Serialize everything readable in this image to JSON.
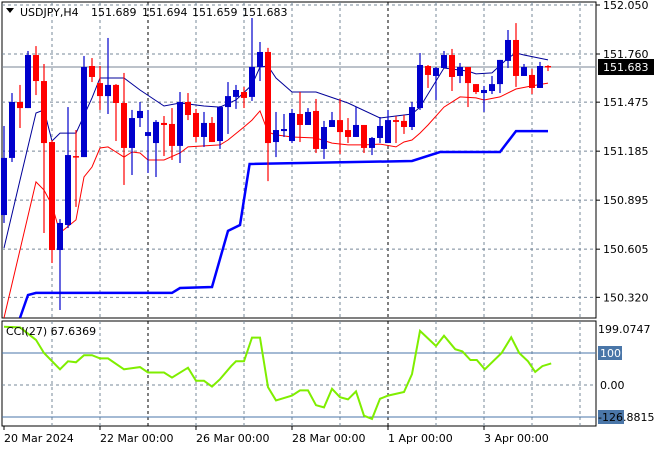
{
  "header": {
    "symbol_arrow_icon": "triangle-down-icon",
    "symbol": "USDJPY,H4",
    "open": "151.689",
    "high": "151.694",
    "low": "151.659",
    "close": "151.683"
  },
  "colors": {
    "bull": "#0000CC",
    "bear": "#FF0000",
    "upper_line": "#000099",
    "lower_line": "#FF0000",
    "stop_line": "#0000FF",
    "cci": "#7FEE00",
    "level": "#4A76A8",
    "grid": "#778899"
  },
  "chart_data": [
    {
      "type": "candlestick",
      "title": "USDJPY,H4",
      "y_ticks": [
        "152.050",
        "151.760",
        "151.475",
        "151.185",
        "150.895",
        "150.605",
        "150.320"
      ],
      "ylim": [
        150.2,
        152.07
      ],
      "grid": true,
      "current_price": "151.683",
      "x_ticks": [
        {
          "bar": 1,
          "label": "20 Mar 2024"
        },
        {
          "bar": 13,
          "label": "22 Mar 00:00"
        },
        {
          "bar": 25,
          "label": "26 Mar 00:00"
        },
        {
          "bar": 37,
          "label": "28 Mar 00:00"
        },
        {
          "bar": 49,
          "label": "1 Apr 00:00"
        },
        {
          "bar": 61,
          "label": "3 Apr 00:00"
        }
      ],
      "ohlc": [
        [
          150.807,
          151.334,
          150.76,
          151.145
        ],
        [
          151.145,
          151.529,
          151.121,
          151.476
        ],
        [
          151.476,
          151.577,
          151.322,
          151.44
        ],
        [
          151.44,
          151.778,
          151.44,
          151.754
        ],
        [
          151.754,
          151.807,
          151.517,
          151.6
        ],
        [
          151.6,
          151.701,
          150.701,
          151.233
        ],
        [
          151.239,
          151.251,
          150.523,
          150.6
        ],
        [
          150.6,
          150.783,
          150.245,
          150.76
        ],
        [
          150.748,
          151.446,
          150.73,
          151.162
        ],
        [
          151.156,
          151.31,
          150.855,
          151.15
        ],
        [
          151.15,
          151.748,
          151.15,
          151.683
        ],
        [
          151.689,
          151.736,
          151.594,
          151.624
        ],
        [
          151.588,
          151.689,
          151.429,
          151.511
        ],
        [
          151.511,
          151.855,
          151.405,
          151.577
        ],
        [
          151.577,
          151.582,
          151.245,
          151.47
        ],
        [
          151.47,
          151.648,
          150.985,
          151.204
        ],
        [
          151.204,
          151.429,
          151.044,
          151.381
        ],
        [
          151.381,
          151.476,
          151.328,
          151.423
        ],
        [
          151.275,
          151.429,
          151.056,
          151.298
        ],
        [
          151.233,
          151.369,
          151.032,
          151.358
        ],
        [
          151.352,
          151.393,
          151.156,
          151.34
        ],
        [
          151.346,
          151.44,
          151.133,
          151.216
        ],
        [
          151.216,
          151.535,
          151.115,
          151.476
        ],
        [
          151.476,
          151.529,
          151.369,
          151.399
        ],
        [
          151.411,
          151.435,
          151.239,
          151.269
        ],
        [
          151.269,
          151.417,
          151.21,
          151.352
        ],
        [
          151.352,
          151.387,
          151.239,
          151.239
        ],
        [
          151.245,
          151.452,
          151.198,
          151.446
        ],
        [
          151.446,
          151.594,
          151.287,
          151.511
        ],
        [
          151.506,
          151.577,
          151.435,
          151.547
        ],
        [
          151.535,
          151.565,
          151.44,
          151.5
        ],
        [
          151.506,
          151.973,
          151.482,
          151.683
        ],
        [
          151.683,
          151.831,
          151.6,
          151.772
        ],
        [
          151.772,
          151.796,
          151.008,
          151.233
        ],
        [
          151.239,
          151.417,
          151.15,
          151.31
        ],
        [
          151.304,
          151.405,
          151.269,
          151.316
        ],
        [
          151.245,
          151.435,
          151.233,
          151.411
        ],
        [
          151.405,
          151.535,
          151.239,
          151.34
        ],
        [
          151.34,
          151.44,
          151.34,
          151.417
        ],
        [
          151.423,
          151.494,
          151.174,
          151.198
        ],
        [
          151.198,
          151.364,
          151.139,
          151.328
        ],
        [
          151.328,
          151.417,
          151.328,
          151.369
        ],
        [
          151.369,
          151.494,
          151.168,
          151.298
        ],
        [
          151.31,
          151.381,
          151.233,
          151.269
        ],
        [
          151.269,
          151.446,
          151.269,
          151.34
        ],
        [
          151.34,
          151.34,
          151.174,
          151.204
        ],
        [
          151.204,
          151.269,
          151.162,
          151.263
        ],
        [
          151.263,
          151.387,
          151.233,
          151.334
        ],
        [
          151.233,
          151.429,
          151.233,
          151.369
        ],
        [
          151.369,
          151.393,
          151.233,
          151.358
        ],
        [
          151.364,
          151.399,
          151.287,
          151.328
        ],
        [
          151.328,
          151.476,
          151.31,
          151.446
        ],
        [
          151.44,
          151.766,
          151.429,
          151.695
        ],
        [
          151.689,
          151.695,
          151.559,
          151.636
        ],
        [
          151.63,
          151.683,
          151.488,
          151.677
        ],
        [
          151.677,
          151.778,
          151.677,
          151.754
        ],
        [
          151.754,
          151.79,
          151.541,
          151.624
        ],
        [
          151.63,
          151.707,
          151.588,
          151.683
        ],
        [
          151.683,
          151.683,
          151.446,
          151.588
        ],
        [
          151.582,
          151.582,
          151.523,
          151.535
        ],
        [
          151.529,
          151.571,
          151.417,
          151.547
        ],
        [
          151.541,
          151.63,
          151.523,
          151.582
        ],
        [
          151.582,
          151.725,
          151.529,
          151.725
        ],
        [
          151.719,
          151.902,
          151.677,
          151.843
        ],
        [
          151.843,
          151.943,
          151.565,
          151.63
        ],
        [
          151.63,
          151.701,
          151.63,
          151.683
        ],
        [
          151.636,
          151.671,
          151.523,
          151.559
        ],
        [
          151.559,
          151.713,
          151.559,
          151.689
        ],
        [
          151.689,
          151.694,
          151.659,
          151.683
        ]
      ],
      "overlays": [
        {
          "role": "upper",
          "points": [
            [
              1,
              150.612
            ],
            [
              3,
              151.014
            ],
            [
              5,
              151.411
            ],
            [
              6,
              151.429
            ],
            [
              7,
              151.245
            ],
            [
              8,
              151.292
            ],
            [
              10,
              151.292
            ],
            [
              12,
              151.5
            ],
            [
              13,
              151.618
            ],
            [
              16,
              151.618
            ],
            [
              18,
              151.547
            ],
            [
              21,
              151.452
            ],
            [
              23,
              151.47
            ],
            [
              26,
              151.452
            ],
            [
              28,
              151.446
            ],
            [
              30,
              151.488
            ],
            [
              32,
              151.577
            ],
            [
              33,
              151.683
            ],
            [
              34,
              151.689
            ],
            [
              35,
              151.618
            ],
            [
              37,
              151.535
            ],
            [
              40,
              151.535
            ],
            [
              44,
              151.47
            ],
            [
              48,
              151.381
            ],
            [
              52,
              151.405
            ],
            [
              53,
              151.446
            ],
            [
              56,
              151.677
            ],
            [
              59,
              151.659
            ],
            [
              60,
              151.642
            ],
            [
              62,
              151.648
            ],
            [
              64,
              151.736
            ],
            [
              65,
              151.766
            ],
            [
              66,
              151.754
            ],
            [
              69,
              151.725
            ]
          ]
        },
        {
          "role": "lower",
          "points": [
            [
              1,
              150.198
            ],
            [
              5,
              151.003
            ],
            [
              6,
              150.955
            ],
            [
              7,
              150.866
            ],
            [
              8,
              150.701
            ],
            [
              10,
              150.778
            ],
            [
              11,
              151.032
            ],
            [
              12,
              151.091
            ],
            [
              13,
              151.204
            ],
            [
              14,
              151.21
            ],
            [
              15,
              151.18
            ],
            [
              16,
              151.15
            ],
            [
              17,
              151.18
            ],
            [
              18,
              151.174
            ],
            [
              19,
              151.133
            ],
            [
              21,
              151.133
            ],
            [
              23,
              151.174
            ],
            [
              24,
              151.21
            ],
            [
              28,
              151.222
            ],
            [
              29,
              151.251
            ],
            [
              31,
              151.328
            ],
            [
              32,
              151.369
            ],
            [
              33,
              151.423
            ],
            [
              34,
              151.298
            ],
            [
              35,
              151.281
            ],
            [
              37,
              151.269
            ],
            [
              40,
              151.263
            ],
            [
              42,
              151.233
            ],
            [
              44,
              151.222
            ],
            [
              46,
              151.222
            ],
            [
              48,
              151.227
            ],
            [
              50,
              151.21
            ],
            [
              51,
              151.239
            ],
            [
              52,
              151.251
            ],
            [
              53,
              151.292
            ],
            [
              54,
              151.34
            ],
            [
              56,
              151.446
            ],
            [
              58,
              151.506
            ],
            [
              60,
              151.5
            ],
            [
              61,
              151.488
            ],
            [
              63,
              151.506
            ],
            [
              65,
              151.553
            ],
            [
              67,
              151.571
            ],
            [
              69,
              151.588
            ]
          ]
        },
        {
          "role": "stop",
          "points": [
            [
              3,
              150.198
            ],
            [
              4,
              150.334
            ],
            [
              5,
              150.346
            ],
            [
              22,
              150.346
            ],
            [
              23,
              150.375
            ],
            [
              27,
              150.381
            ],
            [
              29,
              150.713
            ],
            [
              30.5,
              150.748
            ],
            [
              31.7,
              151.109
            ],
            [
              52,
              151.127
            ],
            [
              55.5,
              151.18
            ],
            [
              63,
              151.18
            ],
            [
              65,
              151.304
            ],
            [
              69,
              151.304
            ]
          ]
        }
      ]
    },
    {
      "type": "line",
      "title": "CCI(27) 67.6369",
      "indicator": "CCI(27)",
      "value": "67.6369",
      "y_max_label": "199.0747",
      "y_min_label": "-126.8815",
      "levels": [
        "100",
        "0.00"
      ],
      "level_values": [
        100,
        0,
        -100
      ],
      "ylim": [
        -126.8815,
        199.0747
      ],
      "points": [
        [
          1,
          182
        ],
        [
          3,
          180
        ],
        [
          5,
          141
        ],
        [
          6,
          100
        ],
        [
          8,
          49
        ],
        [
          9,
          74
        ],
        [
          10,
          71
        ],
        [
          11,
          93
        ],
        [
          12,
          93
        ],
        [
          13,
          83
        ],
        [
          14,
          83
        ],
        [
          16,
          49
        ],
        [
          18,
          56
        ],
        [
          19,
          39
        ],
        [
          21,
          39
        ],
        [
          22,
          23
        ],
        [
          24,
          54
        ],
        [
          25,
          13
        ],
        [
          26,
          13
        ],
        [
          27,
          -5
        ],
        [
          28,
          18
        ],
        [
          29.4,
          59
        ],
        [
          30,
          74
        ],
        [
          31,
          74
        ],
        [
          32,
          148
        ],
        [
          33,
          148
        ],
        [
          34,
          -7
        ],
        [
          35,
          -48
        ],
        [
          37,
          -33
        ],
        [
          38,
          -17
        ],
        [
          39,
          -17
        ],
        [
          40,
          -63
        ],
        [
          41,
          -70
        ],
        [
          42,
          -12
        ],
        [
          43,
          -38
        ],
        [
          44,
          -45
        ],
        [
          45,
          -20
        ],
        [
          46,
          -96
        ],
        [
          47,
          -106
        ],
        [
          48,
          -43
        ],
        [
          49,
          -33
        ],
        [
          51,
          -22
        ],
        [
          52,
          34
        ],
        [
          53,
          169
        ],
        [
          55,
          122
        ],
        [
          56,
          154
        ],
        [
          57.4,
          112
        ],
        [
          58.3,
          105
        ],
        [
          59.3,
          78
        ],
        [
          60.1,
          78
        ],
        [
          61.1,
          49
        ],
        [
          63.2,
          100
        ],
        [
          64.4,
          149
        ],
        [
          65.4,
          100
        ],
        [
          66.5,
          74
        ],
        [
          67.4,
          41
        ],
        [
          68.3,
          59
        ],
        [
          69.4,
          67.6369
        ]
      ]
    }
  ]
}
